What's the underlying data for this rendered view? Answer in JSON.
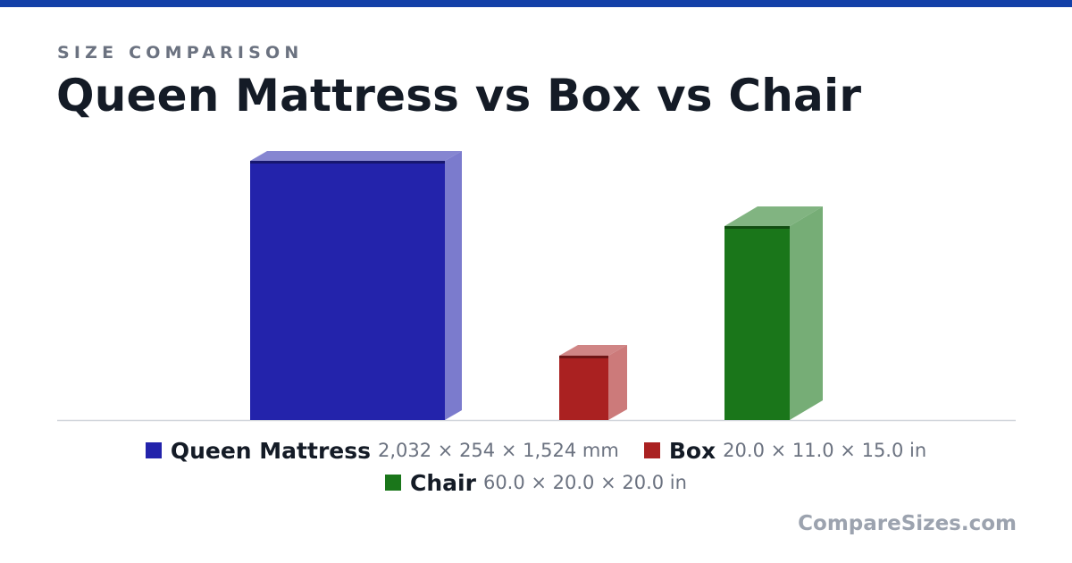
{
  "header": {
    "eyebrow": "SIZE COMPARISON",
    "title": "Queen Mattress vs Box vs Chair"
  },
  "colors": {
    "top_bar": "#1340a8",
    "queen_mattress": "#2323ab",
    "box": "#aa2121",
    "chair": "#1a761a"
  },
  "chart_data": {
    "type": "bar",
    "title": "Queen Mattress vs Box vs Chair",
    "categories": [
      "Queen Mattress",
      "Box",
      "Chair"
    ],
    "series": [
      {
        "values": [
          {
            "name": "Queen Mattress",
            "width_mm": 2032,
            "height_mm": 254,
            "depth_mm": 1524,
            "label": "2,032 × 254 × 1,524 mm"
          },
          {
            "name": "Box",
            "width_in": 20.0,
            "height_in": 11.0,
            "depth_in": 15.0,
            "label": "20.0 × 11.0 × 15.0 in"
          },
          {
            "name": "Chair",
            "width_in": 60.0,
            "height_in": 20.0,
            "depth_in": 20.0,
            "label": "60.0 × 20.0 × 20.0 in"
          }
        ]
      }
    ],
    "render_3d": true,
    "grid": false
  },
  "legend": [
    {
      "name": "Queen Mattress",
      "dims": "2,032 × 254 × 1,524 mm",
      "color": "#2323ab"
    },
    {
      "name": "Box",
      "dims": "20.0 × 11.0 × 15.0 in",
      "color": "#aa2121"
    },
    {
      "name": "Chair",
      "dims": "60.0 × 20.0 × 20.0 in",
      "color": "#1a761a"
    }
  ],
  "footer": {
    "brand": "CompareSizes.com"
  }
}
